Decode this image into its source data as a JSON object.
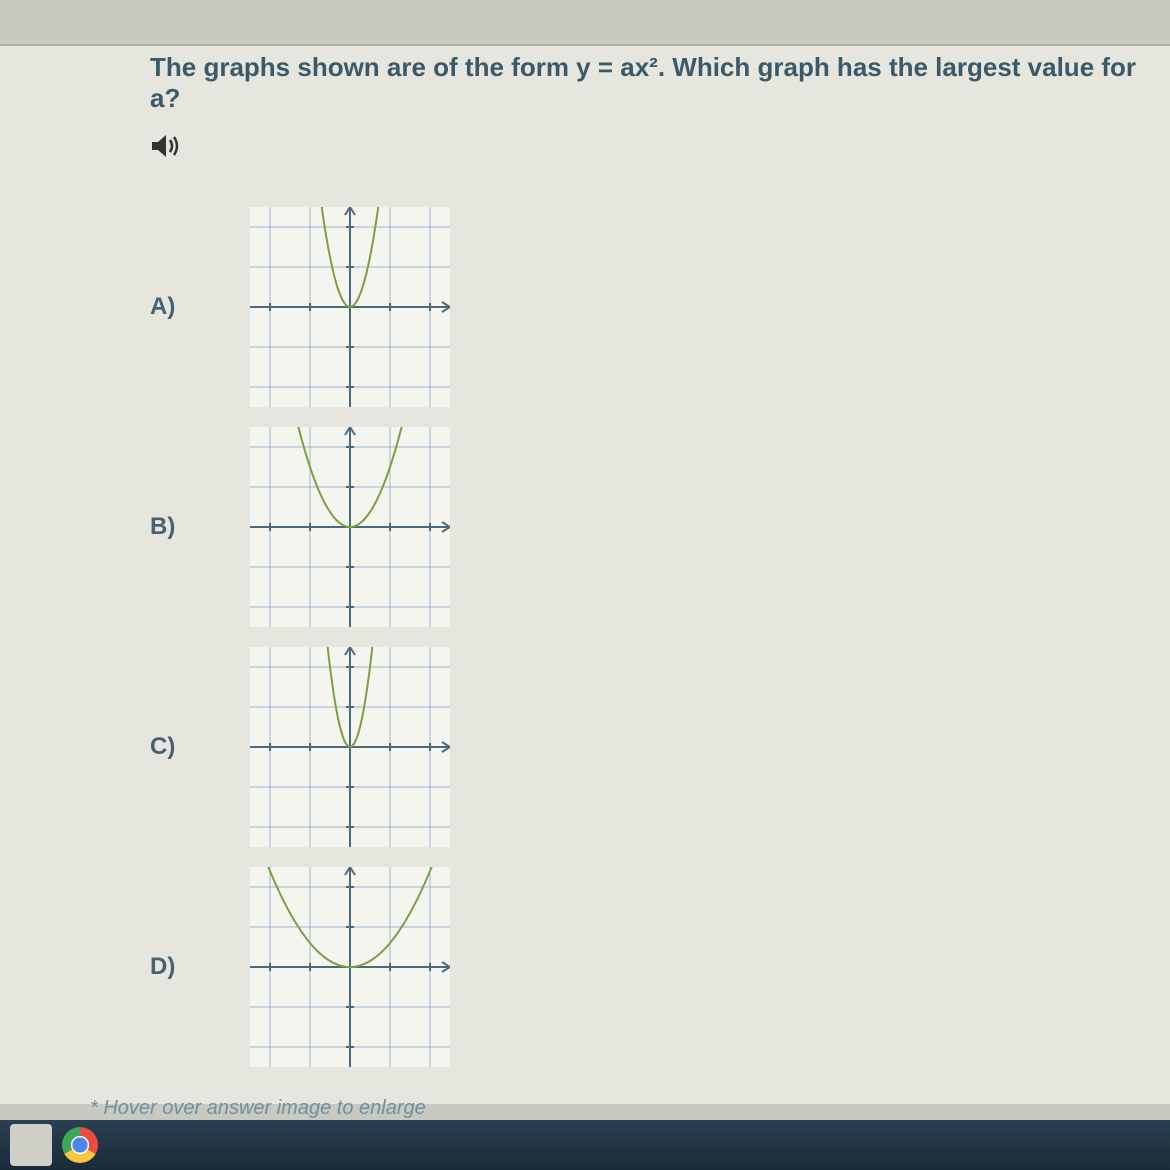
{
  "question": "The graphs shown are of the form y = ax². Which graph has the largest value for a?",
  "hint": "* Hover over answer image to enlarge",
  "speaker_icon": "speaker-icon",
  "grid": {
    "xmin": -2.5,
    "xmax": 2.5,
    "ymin": -2.5,
    "ymax": 2.5,
    "step": 1,
    "bg": "#f5f5ef",
    "grid_color": "#9ab4cc",
    "axis_color": "#4a6a80",
    "curve_color": "#7e9e42",
    "curve_width": 2
  },
  "options": [
    {
      "label": "A)",
      "a": 5.0
    },
    {
      "label": "B)",
      "a": 1.5
    },
    {
      "label": "C)",
      "a": 8.0
    },
    {
      "label": "D)",
      "a": 0.6
    }
  ],
  "taskbar": {
    "chrome_color": "#ffcc33"
  }
}
